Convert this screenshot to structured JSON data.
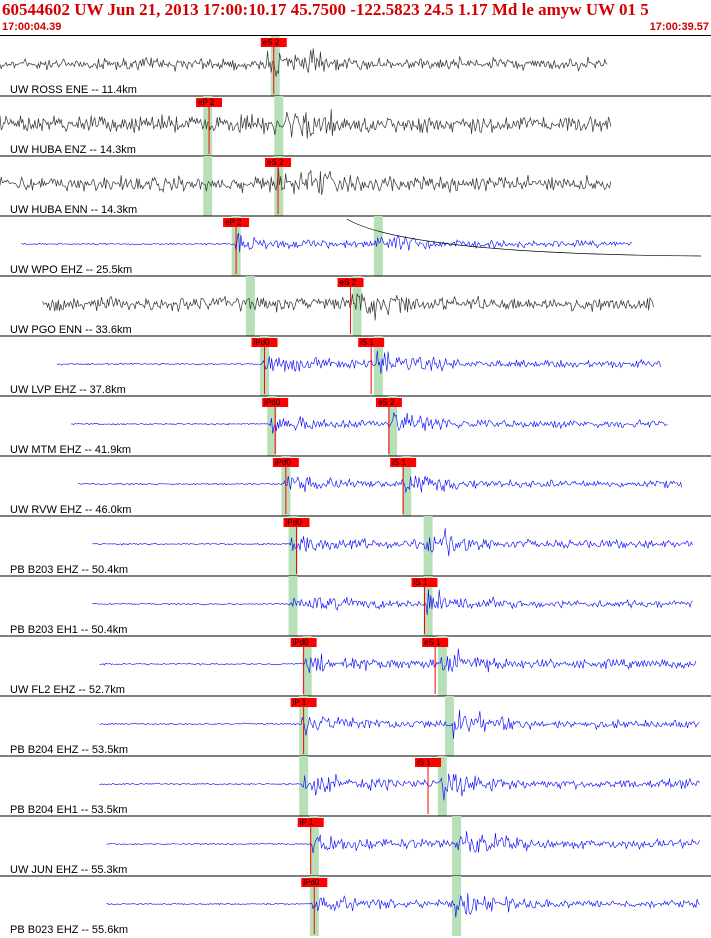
{
  "header": {
    "title": "60544602 UW Jun 21, 2013 17:00:10.17   45.7500 -122.5823 24.5 1.17 Md le amyw UW 01   5",
    "time_start": "17:00:04.39",
    "time_end": "17:00:39.57"
  },
  "colors": {
    "header_text": "#d40000",
    "trace_gray": "#333333",
    "trace_blue": "#0000ff",
    "pick_flag": "#ff0000",
    "pick_window": "#b8e0b8",
    "separator": "#000000"
  },
  "traces": [
    {
      "label": "UW ROSS ENE -- 11.4km",
      "color": "gray",
      "start": 0.0,
      "end": 0.855,
      "amp": 11,
      "pickA": null,
      "pickA_label": "",
      "pickA_t": null,
      "pickS_t": 0.378,
      "pickS_label": "eS 2",
      "onsetA": null,
      "onsetS": 0.385,
      "tail": false
    },
    {
      "label": "UW HUBA ENZ -- 14.3km",
      "color": "gray",
      "start": 0.0,
      "end": 0.86,
      "amp": 16,
      "pickA_label": "eP 2",
      "pickA_t": 0.287,
      "pickS_t": null,
      "pickS_label": "",
      "onsetA": 0.29,
      "onsetS": 0.39,
      "tail": false
    },
    {
      "label": "UW HUBA ENN -- 14.3km",
      "color": "gray",
      "start": 0.0,
      "end": 0.86,
      "amp": 14,
      "pickA_label": "",
      "pickA_t": null,
      "pickS_t": 0.384,
      "pickS_label": "eS 2",
      "onsetA": 0.29,
      "onsetS": 0.39,
      "tail": false
    },
    {
      "label": "UW WPO EHZ -- 25.5km",
      "color": "blue",
      "start": 0.03,
      "end": 0.89,
      "amp": 14,
      "pickA_label": "eP 2",
      "pickA_t": 0.325,
      "pickS_t": null,
      "pickS_label": "",
      "onsetA": 0.33,
      "onsetS": 0.53,
      "tail": true
    },
    {
      "label": "UW PGO ENN -- 33.6km",
      "color": "gray",
      "start": 0.06,
      "end": 0.92,
      "amp": 13,
      "pickA_label": "",
      "pickA_t": null,
      "pickS_t": 0.486,
      "pickS_label": "eS 2",
      "onsetA": 0.35,
      "onsetS": 0.5,
      "tail": false
    },
    {
      "label": "UW LVP EHZ -- 37.8km",
      "color": "blue",
      "start": 0.08,
      "end": 0.93,
      "amp": 16,
      "pickA_label": "iPd0",
      "pickA_t": 0.365,
      "pickS_t": 0.515,
      "pickS_label": "iS 1",
      "onsetA": 0.37,
      "onsetS": 0.53,
      "tail": false
    },
    {
      "label": "UW MTM EHZ -- 41.9km",
      "color": "blue",
      "start": 0.1,
      "end": 0.94,
      "amp": 16,
      "pickA_label": "iPd0",
      "pickA_t": 0.38,
      "pickS_t": 0.54,
      "pickS_label": "eS 2",
      "onsetA": 0.38,
      "onsetS": 0.55,
      "tail": false
    },
    {
      "label": "UW RVW EHZ -- 46.0km",
      "color": "blue",
      "start": 0.11,
      "end": 0.96,
      "amp": 15,
      "pickA_label": "iPd0",
      "pickA_t": 0.395,
      "pickS_t": 0.56,
      "pickS_label": "iS 1",
      "onsetA": 0.4,
      "onsetS": 0.57,
      "tail": false
    },
    {
      "label": "PB B203 EHZ -- 50.4km",
      "color": "blue",
      "start": 0.13,
      "end": 0.975,
      "amp": 17,
      "pickA_label": "iPd0",
      "pickA_t": 0.41,
      "pickS_t": null,
      "pickS_label": "",
      "onsetA": 0.41,
      "onsetS": 0.6,
      "tail": false
    },
    {
      "label": "PB B203 EH1 -- 50.4km",
      "color": "blue",
      "start": 0.13,
      "end": 0.975,
      "amp": 16,
      "pickA_label": "",
      "pickA_t": null,
      "pickS_t": 0.59,
      "pickS_label": "iS 1",
      "onsetA": 0.41,
      "onsetS": 0.6,
      "tail": false
    },
    {
      "label": "UW FL2 EHZ -- 52.7km",
      "color": "blue",
      "start": 0.14,
      "end": 0.98,
      "amp": 18,
      "pickA_label": "iPd0",
      "pickA_t": 0.42,
      "pickS_t": 0.605,
      "pickS_label": "eS 1",
      "onsetA": 0.43,
      "onsetS": 0.62,
      "tail": false
    },
    {
      "label": "PB B204 EHZ -- 53.5km",
      "color": "blue",
      "start": 0.14,
      "end": 0.985,
      "amp": 17,
      "pickA_label": "iP 1",
      "pickA_t": 0.42,
      "pickS_t": null,
      "pickS_label": "",
      "onsetA": 0.425,
      "onsetS": 0.63,
      "tail": false
    },
    {
      "label": "PB B204 EH1 -- 53.5km",
      "color": "blue",
      "start": 0.14,
      "end": 0.985,
      "amp": 18,
      "pickA_label": "",
      "pickA_t": null,
      "pickS_t": 0.595,
      "pickS_label": "iS 1",
      "onsetA": 0.425,
      "onsetS": 0.62,
      "tail": false
    },
    {
      "label": "UW JUN EHZ -- 55.3km",
      "color": "blue",
      "start": 0.15,
      "end": 0.985,
      "amp": 18,
      "pickA_label": "iP 1",
      "pickA_t": 0.43,
      "pickS_t": null,
      "pickS_label": "",
      "onsetA": 0.44,
      "onsetS": 0.64,
      "tail": false
    },
    {
      "label": "PB B023 EHZ -- 55.6km",
      "color": "blue",
      "start": 0.15,
      "end": 0.985,
      "amp": 16,
      "pickA_label": "iPd0",
      "pickA_t": 0.435,
      "pickS_t": null,
      "pickS_label": "",
      "onsetA": 0.44,
      "onsetS": 0.64,
      "tail": false
    }
  ]
}
